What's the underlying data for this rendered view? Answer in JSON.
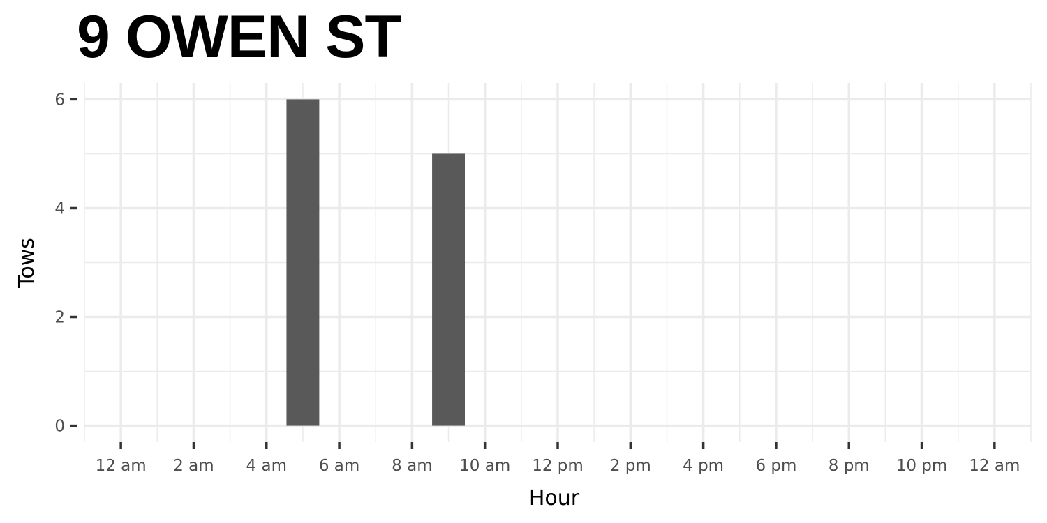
{
  "chart_data": {
    "type": "bar",
    "title": "9 OWEN ST",
    "xlabel": "Hour",
    "ylabel": "Tows",
    "xlim": [
      -1,
      25
    ],
    "ylim": [
      -0.3,
      6.3
    ],
    "x_ticks": [
      0,
      2,
      4,
      6,
      8,
      10,
      12,
      14,
      16,
      18,
      20,
      22,
      24
    ],
    "x_tick_labels": [
      "12 am",
      "2 am",
      "4 am",
      "6 am",
      "8 am",
      "10 am",
      "12 pm",
      "2 pm",
      "4 pm",
      "6 pm",
      "8 pm",
      "10 pm",
      "12 am"
    ],
    "y_ticks": [
      0,
      2,
      4,
      6
    ],
    "y_tick_labels": [
      "0",
      "2",
      "4",
      "6"
    ],
    "bars": [
      {
        "hour": 5,
        "value": 6
      },
      {
        "hour": 9,
        "value": 5
      }
    ],
    "bar_color": "#595959",
    "grid": true
  }
}
